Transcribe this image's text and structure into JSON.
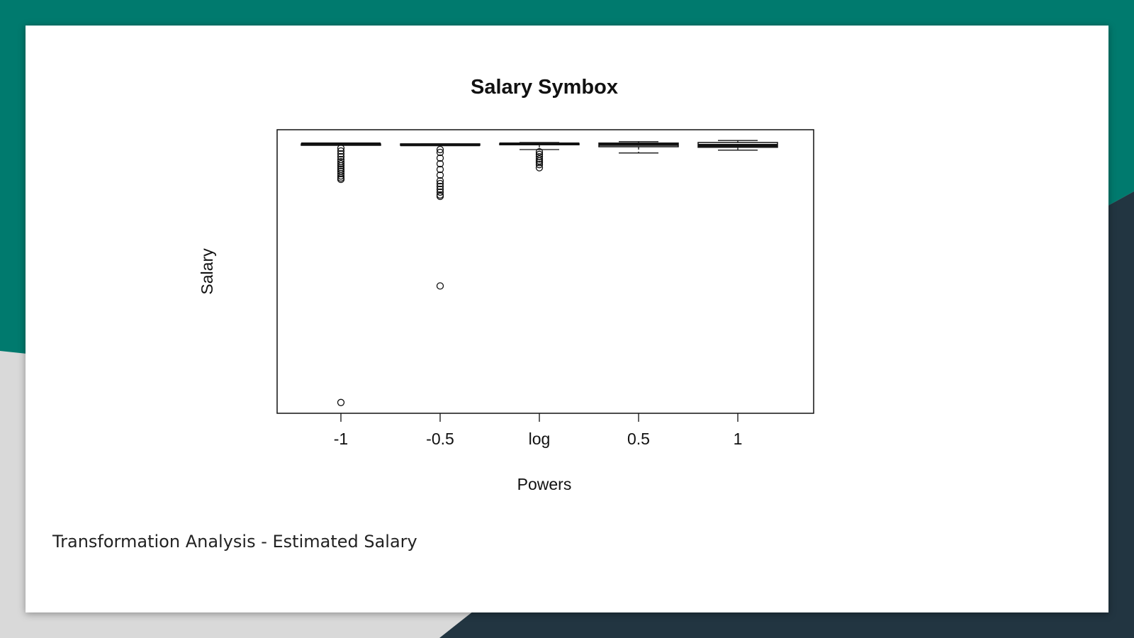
{
  "slide": {
    "caption": "Transformation Analysis - Estimated Salary",
    "colors": {
      "teal": "#007A6E",
      "dark": "#223541",
      "gray": "#d9d9d9",
      "slide": "#ffffff"
    }
  },
  "chart_data": {
    "type": "boxplot",
    "title": "Salary Symbox",
    "xlabel": "Powers",
    "ylabel": "Salary",
    "categories": [
      "-1",
      "-0.5",
      "log",
      "0.5",
      "1"
    ],
    "y_axis_ticks_shown": false,
    "ylim": [
      0,
      1
    ],
    "note": "y values are normalized transformed scales (0 = plot bottom, 1 = plot top); no y tick labels are printed",
    "boxes": [
      {
        "category": "-1",
        "whisker_low": 0.95,
        "q1": 0.95,
        "median": 0.95,
        "q3": 0.95,
        "whisker_high": 0.95,
        "outliers": [
          0.935,
          0.925,
          0.915,
          0.905,
          0.895,
          0.887,
          0.88,
          0.873,
          0.866,
          0.86,
          0.853,
          0.845,
          0.837,
          0.83,
          0.825,
          0.038
        ]
      },
      {
        "category": "-0.5",
        "whisker_low": 0.945,
        "q1": 0.945,
        "median": 0.947,
        "q3": 0.95,
        "whisker_high": 0.95,
        "outliers": [
          0.93,
          0.92,
          0.9,
          0.88,
          0.86,
          0.84,
          0.82,
          0.81,
          0.8,
          0.79,
          0.78,
          0.77,
          0.765,
          0.449
        ]
      },
      {
        "category": "log",
        "whisker_low": 0.93,
        "q1": 0.947,
        "median": 0.95,
        "q3": 0.952,
        "whisker_high": 0.955,
        "outliers": [
          0.922,
          0.913,
          0.905,
          0.897,
          0.89,
          0.884,
          0.877,
          0.866
        ]
      },
      {
        "category": "0.5",
        "whisker_low": 0.918,
        "q1": 0.94,
        "median": 0.948,
        "q3": 0.953,
        "whisker_high": 0.958,
        "outliers": []
      },
      {
        "category": "1",
        "whisker_low": 0.928,
        "q1": 0.938,
        "median": 0.945,
        "q3": 0.955,
        "whisker_high": 0.962,
        "outliers": []
      }
    ],
    "grid": false,
    "legend": "none"
  }
}
